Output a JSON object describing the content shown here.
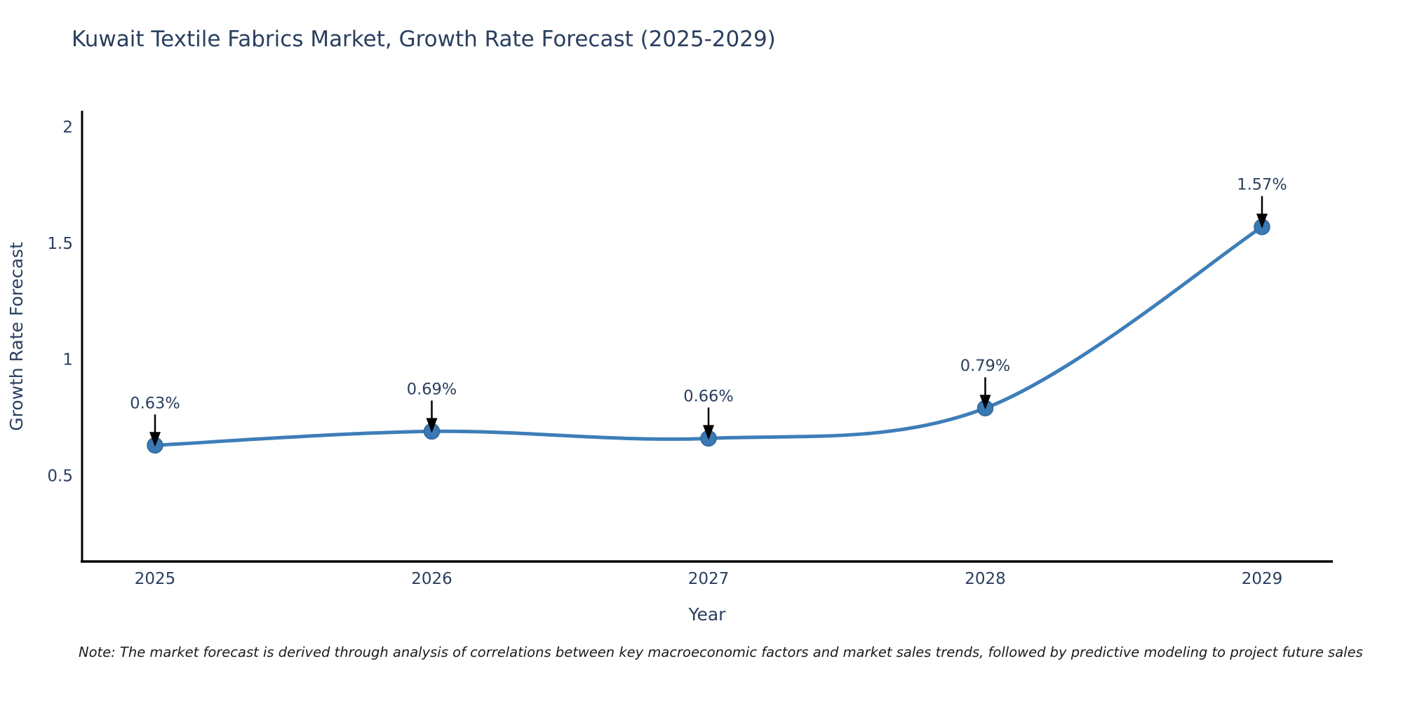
{
  "title": "Kuwait Textile Fabrics Market, Growth Rate Forecast (2025-2029)",
  "note": "Note: The market forecast is derived through analysis of correlations between key macroeconomic factors and market sales trends, followed by predictive modeling to project future sales",
  "chart_data": {
    "type": "line",
    "title": "Kuwait Textile Fabrics Market, Growth Rate Forecast (2025-2029)",
    "xlabel": "Year",
    "ylabel": "Growth Rate Forecast",
    "categories": [
      "2025",
      "2026",
      "2027",
      "2028",
      "2029"
    ],
    "series": [
      {
        "name": "Growth Rate Forecast",
        "values": [
          0.63,
          0.69,
          0.66,
          0.79,
          1.57
        ],
        "point_labels": [
          "0.63%",
          "0.69%",
          "0.66%",
          "0.79%",
          "1.57%"
        ]
      }
    ],
    "ytick_values": [
      0.5,
      1,
      1.5,
      2
    ],
    "ytick_labels": [
      "0.5",
      "1",
      "1.5",
      "2"
    ],
    "ylim": [
      0.13,
      2.07
    ],
    "grid": false,
    "legend": "none",
    "line_shape": "spline",
    "annotation_arrows": true,
    "colors": {
      "line": "#3d7eb8",
      "marker": "#3a79b3",
      "marker_edge": "#2f669c",
      "arrow": "#000000",
      "text": "#2a3f5f",
      "axis": "#000000",
      "note_text": "#1a1a1a",
      "background": "#ffffff"
    }
  }
}
